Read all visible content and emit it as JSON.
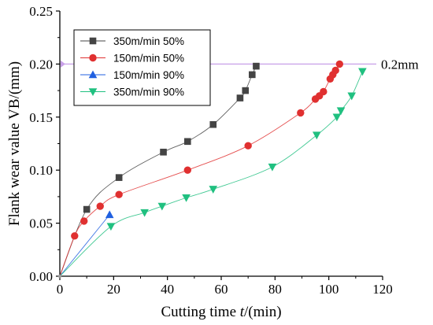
{
  "chart_data": {
    "type": "line",
    "xlabel_prefix": "Cutting time ",
    "xlabel_var": "t",
    "xlabel_suffix": "/(min)",
    "ylabel": "Flank wear value VB/(mm)",
    "xlim": [
      0,
      120
    ],
    "ylim": [
      0,
      0.25
    ],
    "x_ticks": [
      0,
      20,
      40,
      60,
      80,
      100,
      120
    ],
    "y_ticks": [
      "0.00",
      "0.05",
      "0.10",
      "0.15",
      "0.20",
      "0.25"
    ],
    "grid": false,
    "legend_position": "top-left",
    "threshold": {
      "value": 0.2,
      "label": "0.2mm",
      "color": "#c8a0e8"
    },
    "series": [
      {
        "name": "350m/min 50%",
        "color": "#444444",
        "marker": "square",
        "x": [
          10,
          22,
          38.5,
          47.5,
          57,
          67,
          69,
          71.5,
          73
        ],
        "y": [
          0.063,
          0.093,
          0.117,
          0.127,
          0.143,
          0.168,
          0.175,
          0.19,
          0.198
        ]
      },
      {
        "name": "150m/min 50%",
        "color": "#e03030",
        "marker": "circle",
        "x": [
          5.5,
          9,
          15,
          22,
          47.5,
          70,
          89.5,
          95,
          96.5,
          98,
          100.5,
          101.5,
          102.5,
          104
        ],
        "y": [
          0.038,
          0.052,
          0.066,
          0.077,
          0.1,
          0.123,
          0.154,
          0.167,
          0.17,
          0.174,
          0.186,
          0.19,
          0.194,
          0.2
        ]
      },
      {
        "name": "150m/min 90%",
        "color": "#2060e0",
        "marker": "triangle-up",
        "x": [
          18.5
        ],
        "y": [
          0.058
        ]
      },
      {
        "name": "350m/min 90%",
        "color": "#20c080",
        "marker": "triangle-down",
        "x": [
          19,
          31.5,
          38,
          47,
          57,
          79,
          95.5,
          103,
          104.5,
          108.5,
          112.5
        ],
        "y": [
          0.047,
          0.06,
          0.066,
          0.074,
          0.082,
          0.103,
          0.133,
          0.15,
          0.156,
          0.17,
          0.193
        ]
      }
    ]
  }
}
